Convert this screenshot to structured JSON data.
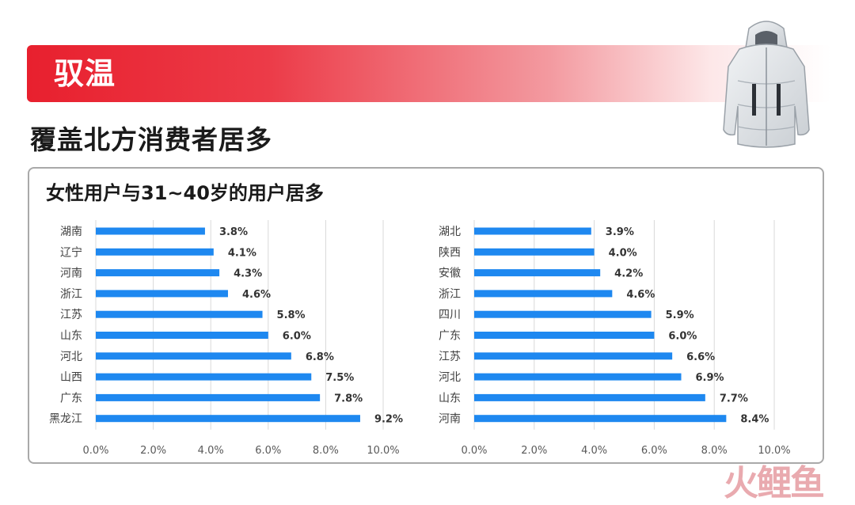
{
  "header": {
    "banner_title": "驭温",
    "subtitle": "覆盖北方消费者居多"
  },
  "panel": {
    "title": "女性用户与31~40岁的用户居多"
  },
  "watermark": {
    "text": "火鲤鱼"
  },
  "colors": {
    "bar": "#1e88f0",
    "banner": "#e8202e",
    "grid": "#d9d9d9"
  },
  "chart_data": [
    {
      "type": "bar",
      "orientation": "horizontal",
      "categories": [
        "湖南",
        "辽宁",
        "河南",
        "浙江",
        "江苏",
        "山东",
        "河北",
        "山西",
        "广东",
        "黑龙江"
      ],
      "values": [
        3.8,
        4.1,
        4.3,
        4.6,
        5.8,
        6.0,
        6.8,
        7.5,
        7.8,
        9.2
      ],
      "value_labels": [
        "3.8%",
        "4.1%",
        "4.3%",
        "4.6%",
        "5.8%",
        "6.0%",
        "6.8%",
        "7.5%",
        "7.8%",
        "9.2%"
      ],
      "xlim": [
        0,
        10
      ],
      "xticks": [
        0,
        2,
        4,
        6,
        8,
        10
      ],
      "xtick_labels": [
        "0.0%",
        "2.0%",
        "4.0%",
        "6.0%",
        "8.0%",
        "10.0%"
      ],
      "grid": true
    },
    {
      "type": "bar",
      "orientation": "horizontal",
      "categories": [
        "湖北",
        "陕西",
        "安徽",
        "浙江",
        "四川",
        "广东",
        "江苏",
        "河北",
        "山东",
        "河南"
      ],
      "values": [
        3.9,
        4.0,
        4.2,
        4.6,
        5.9,
        6.0,
        6.6,
        6.9,
        7.7,
        8.4
      ],
      "value_labels": [
        "3.9%",
        "4.0%",
        "4.2%",
        "4.6%",
        "5.9%",
        "6.0%",
        "6.6%",
        "6.9%",
        "7.7%",
        "8.4%"
      ],
      "xlim": [
        0,
        10
      ],
      "xticks": [
        0,
        2,
        4,
        6,
        8,
        10
      ],
      "xtick_labels": [
        "0.0%",
        "2.0%",
        "4.0%",
        "6.0%",
        "8.0%",
        "10.0%"
      ],
      "grid": true
    }
  ]
}
